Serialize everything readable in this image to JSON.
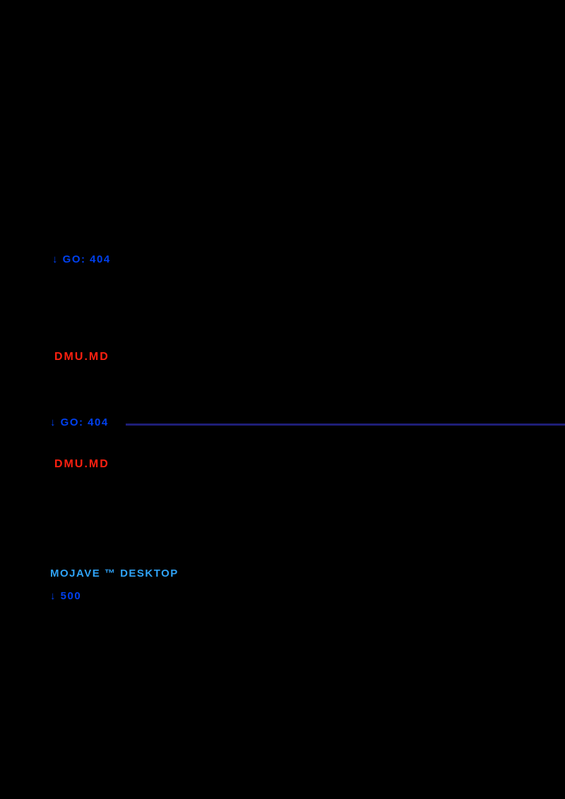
{
  "colors": {
    "background": "#000000",
    "link_blue": "#0040f0",
    "alert_red": "#ff2010",
    "divider_navy": "#1e1e78",
    "link_cyan": "#2fa3f7"
  },
  "content": {
    "section1": {
      "link_label": "↓ GO: 404"
    },
    "section2": {
      "file_label": "DMU.MD"
    },
    "section3": {
      "link_label": "↓ GO: 404"
    },
    "section4": {
      "file_label": "DMU.MD"
    },
    "section5": {
      "link_label": "MOJAVE ™ DESKTOP"
    },
    "section6": {
      "link_label": "↓ 500"
    }
  }
}
